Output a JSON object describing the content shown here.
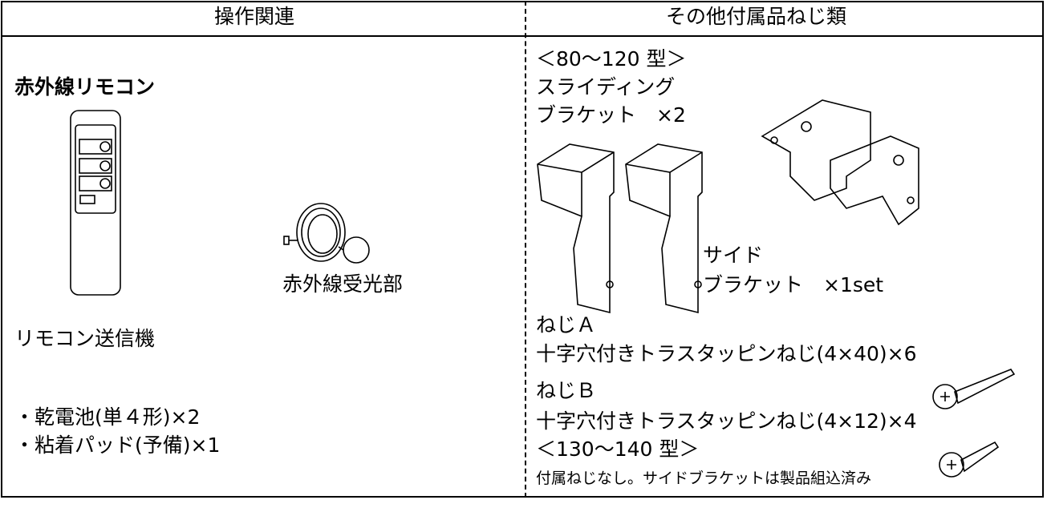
{
  "header": {
    "left": "操作関連",
    "right": "その他付属品ねじ類"
  },
  "left": {
    "title": "赤外線リモコン",
    "receiver_label": "赤外線受光部",
    "remote_label": "リモコン送信機",
    "items": [
      "・乾電池(単４形)×2",
      "・粘着パッド(予備)×1"
    ]
  },
  "right": {
    "size_a": "＜80〜120 型＞",
    "sliding_1": "スライディング",
    "sliding_2": "ブラケット　×2",
    "side_1": "サイド",
    "side_2": "ブラケット　×1set",
    "screw_a_name": "ねじＡ",
    "screw_a_desc": "十字穴付きトラスタッピンねじ(4×40)×6",
    "screw_b_name": "ねじＢ",
    "screw_b_desc": "十字穴付きトラスタッピンねじ(4×12)×4",
    "size_b": "＜130〜140 型＞",
    "note": "付属ねじなし。サイドブラケットは製品組込済み"
  }
}
